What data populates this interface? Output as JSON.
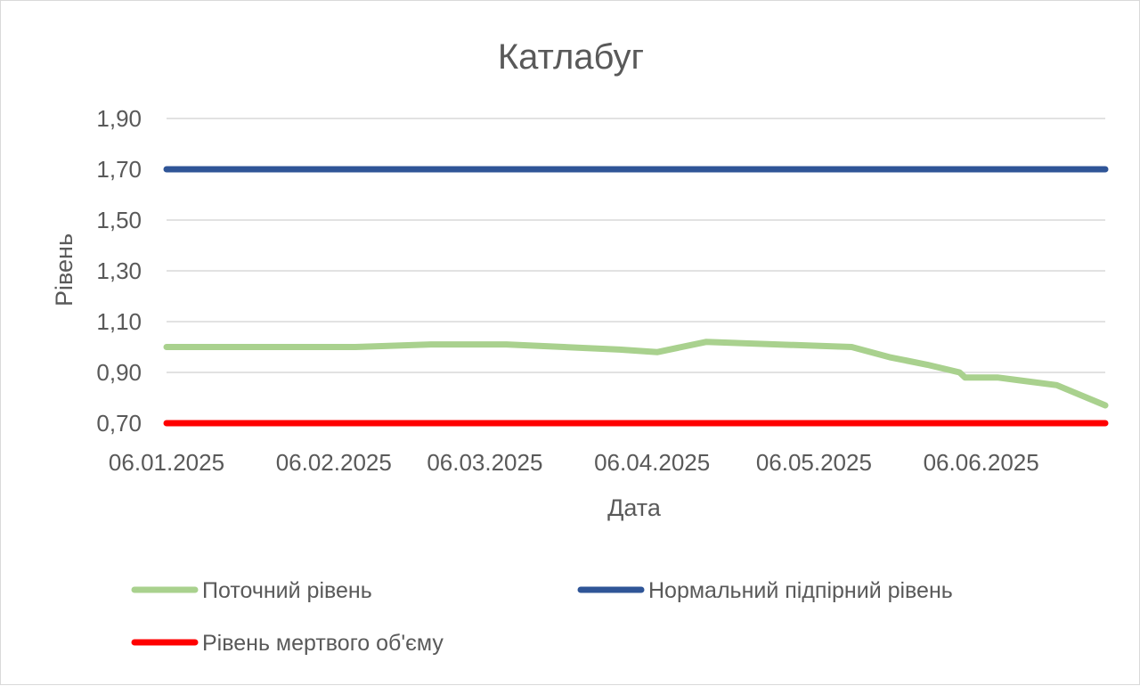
{
  "chart_data": {
    "type": "line",
    "title": "Катлабуг",
    "xlabel": "Дата",
    "ylabel": "Рівень",
    "x_range": [
      "2025-01-06",
      "2025-06-29"
    ],
    "ylim": [
      0.7,
      1.9
    ],
    "y_ticks": [
      0.7,
      0.9,
      1.1,
      1.3,
      1.5,
      1.7,
      1.9
    ],
    "y_tick_labels": [
      "0,70",
      "0,90",
      "1,10",
      "1,30",
      "1,50",
      "1,70",
      "1,90"
    ],
    "x_ticks": [
      "2025-01-06",
      "2025-02-06",
      "2025-03-06",
      "2025-04-06",
      "2025-05-06",
      "2025-06-06"
    ],
    "x_tick_labels": [
      "06.01.2025",
      "06.02.2025",
      "06.03.2025",
      "06.04.2025",
      "06.05.2025",
      "06.06.2025"
    ],
    "grid": true,
    "legend_position": "bottom",
    "series": [
      {
        "name": "Поточний рівень",
        "color": "#a9d18e",
        "x": [
          "2025-01-06",
          "2025-02-10",
          "2025-02-24",
          "2025-03-10",
          "2025-03-31",
          "2025-04-07",
          "2025-04-16",
          "2025-05-13",
          "2025-05-20",
          "2025-05-27",
          "2025-06-02",
          "2025-06-03",
          "2025-06-09",
          "2025-06-20",
          "2025-06-29"
        ],
        "y": [
          1.0,
          1.0,
          1.01,
          1.01,
          0.99,
          0.98,
          1.02,
          1.0,
          0.96,
          0.93,
          0.9,
          0.88,
          0.88,
          0.85,
          0.77
        ]
      },
      {
        "name": "Нормальний підпірний рівень",
        "color": "#2f5597",
        "x": [
          "2025-01-06",
          "2025-06-29"
        ],
        "y": [
          1.7,
          1.7
        ]
      },
      {
        "name": "Рівень мертвого об'єму",
        "color": "#ff0000",
        "x": [
          "2025-01-06",
          "2025-06-29"
        ],
        "y": [
          0.7,
          0.7
        ]
      }
    ]
  }
}
